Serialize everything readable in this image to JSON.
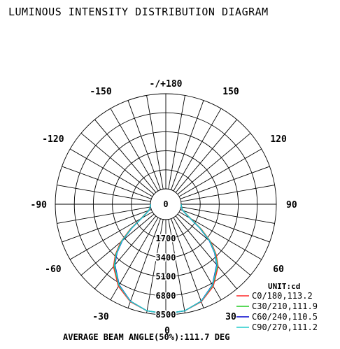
{
  "chart_data": {
    "type": "polar",
    "title": "LUMINOUS INTENSITY DISTRIBUTION DIAGRAM",
    "unit": "UNIT:cd",
    "footer": "AVERAGE BEAM ANGLE(50%):111.7 DEG",
    "angle_labels": [
      "-/+180",
      "150",
      "120",
      "90",
      "60",
      "30",
      "0",
      "-30",
      "-60",
      "-90",
      "-120",
      "-150"
    ],
    "radial_labels": [
      "0",
      "1700",
      "3400",
      "5100",
      "6800",
      "8500"
    ],
    "r_max": 8500,
    "series": [
      {
        "name": "C0/180,113.2",
        "color": "#ff2a2a",
        "angles": [
          -90,
          -80,
          -70,
          -60,
          -55,
          -50,
          -45,
          -40,
          -30,
          -20,
          -10,
          0,
          10,
          20,
          30,
          40,
          45,
          50,
          55,
          60,
          70,
          80,
          90
        ],
        "values": [
          0,
          40,
          250,
          1200,
          2500,
          3900,
          5000,
          5900,
          7100,
          7900,
          8300,
          8400,
          8300,
          7900,
          7100,
          5900,
          5000,
          3900,
          2500,
          1200,
          250,
          40,
          0
        ]
      },
      {
        "name": "C30/210,111.9",
        "color": "#22cc22",
        "angles": [
          -90,
          -80,
          -70,
          -60,
          -55,
          -50,
          -45,
          -40,
          -30,
          -20,
          -10,
          0,
          10,
          20,
          30,
          40,
          45,
          50,
          55,
          60,
          70,
          80,
          90
        ],
        "values": [
          0,
          40,
          240,
          1150,
          2400,
          3800,
          4900,
          5800,
          7000,
          7850,
          8300,
          8400,
          8300,
          7850,
          7000,
          5800,
          4900,
          3800,
          2400,
          1150,
          240,
          40,
          0
        ]
      },
      {
        "name": "C60/240,110.5",
        "color": "#0000cc",
        "angles": [
          -90,
          -80,
          -70,
          -60,
          -55,
          -50,
          -45,
          -40,
          -30,
          -20,
          -10,
          0,
          10,
          20,
          30,
          40,
          45,
          50,
          55,
          60,
          70,
          80,
          90
        ],
        "values": [
          0,
          35,
          220,
          1100,
          2300,
          3700,
          4800,
          5700,
          6950,
          7850,
          8300,
          8420,
          8300,
          7850,
          6950,
          5700,
          4800,
          3700,
          2300,
          1100,
          220,
          35,
          0
        ]
      },
      {
        "name": "C90/270,111.2",
        "color": "#22cccc",
        "angles": [
          -90,
          -80,
          -70,
          -60,
          -55,
          -50,
          -45,
          -40,
          -30,
          -20,
          -10,
          0,
          10,
          20,
          30,
          40,
          45,
          50,
          55,
          60,
          70,
          80,
          90
        ],
        "values": [
          0,
          38,
          230,
          1120,
          2350,
          3750,
          4850,
          5750,
          6980,
          7860,
          8300,
          8410,
          8300,
          7860,
          6980,
          5750,
          4850,
          3750,
          2350,
          1120,
          230,
          38,
          0
        ]
      }
    ]
  }
}
